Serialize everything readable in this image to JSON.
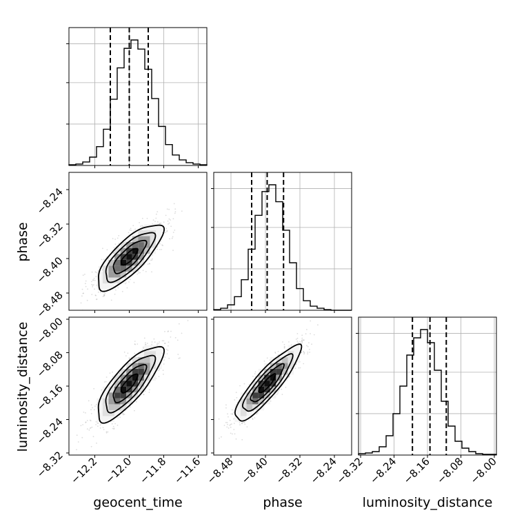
{
  "chart_data": {
    "type": "corner",
    "title": "",
    "colors": {
      "points": "#9a9a9a",
      "ink": "#000000",
      "grid": "#b0b0b0",
      "hist2d_shades": [
        "#f4f4f4",
        "#e0e0e0",
        "#c2c2c2",
        "#9c9c9c",
        "#6e6e6e",
        "#3e3e3e",
        "#111111"
      ]
    },
    "parameters": [
      {
        "name": "geocent_time",
        "xlim": [
          -12.35,
          -11.55
        ],
        "ticks": [
          -12.2,
          -12.0,
          -11.8,
          -11.6
        ],
        "tick_labels": [
          "−12.2",
          "−12.0",
          "−11.8",
          "−11.6"
        ],
        "quantiles": [
          -12.11,
          -12.0,
          -11.89
        ],
        "std": 0.095
      },
      {
        "name": "phase",
        "xlim": [
          -8.52,
          -8.2
        ],
        "ticks": [
          -8.48,
          -8.4,
          -8.32,
          -8.24
        ],
        "tick_labels": [
          "−8.48",
          "−8.40",
          "−8.32",
          "−8.24"
        ],
        "quantiles": [
          -8.432,
          -8.396,
          -8.358
        ],
        "std": 0.038
      },
      {
        "name": "luminosity_distance",
        "xlim": [
          -8.325,
          -7.995
        ],
        "ticks": [
          -8.32,
          -8.24,
          -8.16,
          -8.08,
          -8.0
        ],
        "tick_labels": [
          "−8.32",
          "−8.24",
          "−8.16",
          "−8.08",
          "−8.00"
        ],
        "quantiles": [
          -8.196,
          -8.154,
          -8.115
        ],
        "std": 0.045
      }
    ],
    "histograms": [
      {
        "parameter": "geocent_time",
        "bin_edges_range": [
          -12.35,
          -11.55
        ],
        "counts": [
          1,
          2,
          5,
          12,
          27,
          52,
          95,
          140,
          168,
          180,
          167,
          138,
          96,
          56,
          30,
          15,
          8,
          4,
          2,
          1
        ]
      },
      {
        "parameter": "phase",
        "bin_edges_range": [
          -8.52,
          -8.2
        ],
        "counts": [
          1,
          3,
          8,
          20,
          45,
          90,
          140,
          175,
          185,
          160,
          118,
          70,
          32,
          14,
          6,
          3,
          1,
          0,
          0,
          0
        ]
      },
      {
        "parameter": "luminosity_distance",
        "bin_edges_range": [
          -8.325,
          -7.995
        ],
        "counts": [
          2,
          3,
          5,
          12,
          28,
          60,
          100,
          145,
          170,
          182,
          163,
          123,
          78,
          42,
          20,
          10,
          5,
          2,
          1,
          1
        ]
      }
    ],
    "correlations": {
      "geocent_time|phase": 0.78,
      "geocent_time|luminosity_distance": 0.8,
      "phase|luminosity_distance": 0.88
    },
    "contour_levels_sigma": [
      0.5,
      1.0,
      1.5,
      2.0
    ]
  }
}
